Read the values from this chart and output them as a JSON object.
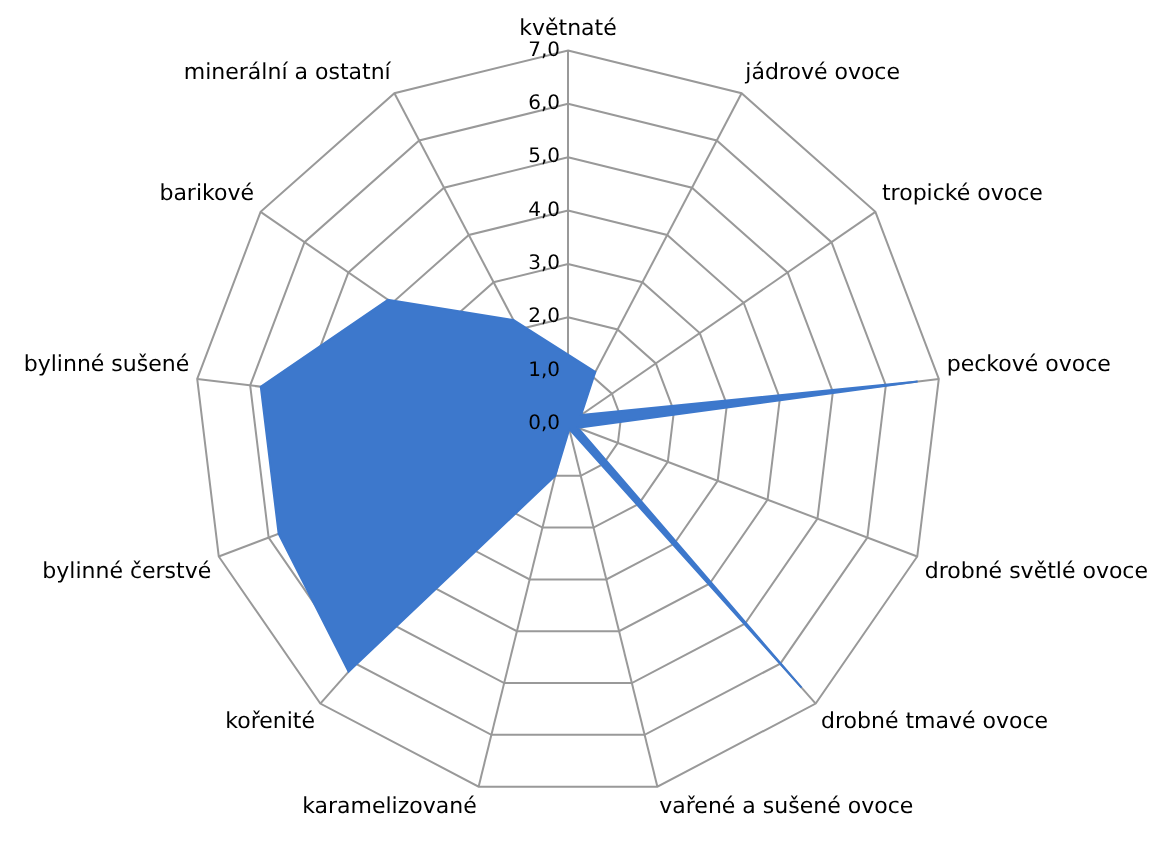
{
  "chart_data": {
    "type": "radar",
    "categories": [
      "květnaté",
      "jádrové ovoce",
      "tropické ovoce",
      "peckové ovoce",
      "drobné světlé ovoce",
      "drobné tmavé ovoce",
      "vařené a sušené ovoce",
      "karamelizované",
      "kořenité",
      "bylinné čerstvé",
      "bylinné sušené",
      "barikové",
      "minerální a ostatní"
    ],
    "series": [
      {
        "color": "#3d78cc",
        "values": [
          1.3,
          1.1,
          0.3,
          6.6,
          0.2,
          6.6,
          0.1,
          1.0,
          6.2,
          5.8,
          5.8,
          4.1,
          2.2
        ]
      }
    ],
    "ylim": [
      0,
      7
    ],
    "yticks": [
      {
        "value": 0,
        "label": "0,0"
      },
      {
        "value": 1,
        "label": "1,0"
      },
      {
        "value": 2,
        "label": "2,0"
      },
      {
        "value": 3,
        "label": "3,0"
      },
      {
        "value": 4,
        "label": "4,0"
      },
      {
        "value": 5,
        "label": "5,0"
      },
      {
        "value": 6,
        "label": "6,0"
      },
      {
        "value": 7,
        "label": "7,0"
      }
    ],
    "grid": true,
    "legend": false
  }
}
